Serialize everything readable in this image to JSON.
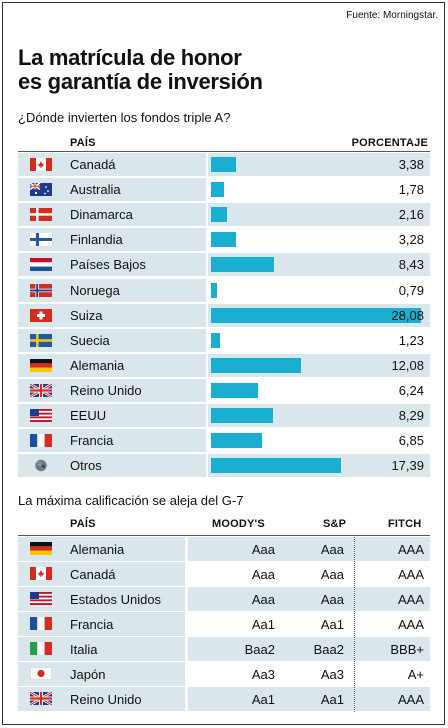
{
  "source": "Fuente: Morningstar.",
  "title_line1": "La matrícula de honor",
  "title_line2": "es garantía de inversión",
  "chart_data": [
    {
      "type": "bar",
      "title": "¿Dónde invierten los fondos triple A?",
      "xlabel": "PAÍS",
      "ylabel": "PORCENTAJE",
      "categories": [
        "Canadá",
        "Australia",
        "Dinamarca",
        "Finlandia",
        "Países Bajos",
        "Noruega",
        "Suiza",
        "Suecia",
        "Alemania",
        "Reino Unido",
        "EEUU",
        "Francia",
        "Otros"
      ],
      "values": [
        3.38,
        1.78,
        2.16,
        3.28,
        8.43,
        0.79,
        28.08,
        1.23,
        12.08,
        6.24,
        8.29,
        6.85,
        17.39
      ],
      "value_labels": [
        "3,38",
        "1,78",
        "2,16",
        "3,28",
        "8,43",
        "0,79",
        "28,08",
        "1,23",
        "12,08",
        "6,24",
        "8,29",
        "6,85",
        "17,39"
      ],
      "flags": [
        "flag-canada-icon",
        "flag-australia-icon",
        "flag-denmark-icon",
        "flag-finland-icon",
        "flag-netherlands-icon",
        "flag-norway-icon",
        "flag-switzerland-icon",
        "flag-sweden-icon",
        "flag-germany-icon",
        "flag-uk-icon",
        "flag-usa-icon",
        "flag-france-icon",
        "globe-icon"
      ],
      "bar_color": "#1aaed0",
      "xlim": [
        0,
        28.08
      ]
    },
    {
      "type": "table",
      "title": "La máxima calificación se aleja del G-7",
      "columns": [
        "PAÍS",
        "MOODY'S",
        "S&P",
        "FITCH"
      ],
      "rows": [
        [
          "Alemania",
          "Aaa",
          "Aaa",
          "AAA"
        ],
        [
          "Canadá",
          "Aaa",
          "Aaa",
          "AAA"
        ],
        [
          "Estados Unidos",
          "Aaa",
          "Aaa",
          "AAA"
        ],
        [
          "Francia",
          "Aa1",
          "Aa1",
          "AAA"
        ],
        [
          "Italia",
          "Baa2",
          "Baa2",
          "BBB+"
        ],
        [
          "Japón",
          "Aa3",
          "Aa3",
          "A+"
        ],
        [
          "Reino Unido",
          "Aa1",
          "Aa1",
          "AAA"
        ]
      ],
      "flags": [
        "flag-germany-icon",
        "flag-canada-icon",
        "flag-usa-icon",
        "flag-france-icon",
        "flag-italy-icon",
        "flag-japan-icon",
        "flag-uk-icon"
      ]
    }
  ],
  "colors": {
    "row_shade": "#d9e6eb",
    "bar": "#1aaed0"
  }
}
